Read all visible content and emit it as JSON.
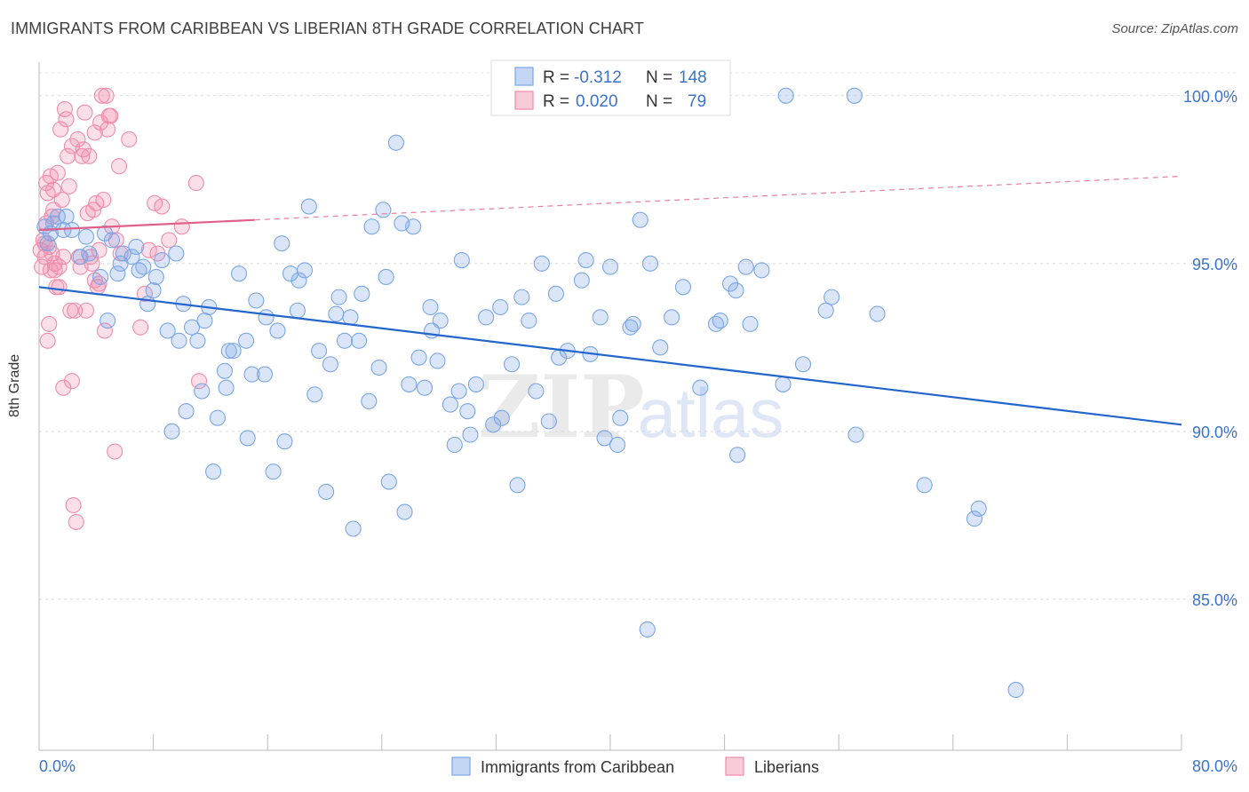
{
  "title": "IMMIGRANTS FROM CARIBBEAN VS LIBERIAN 8TH GRADE CORRELATION CHART",
  "source": "Source: ZipAtlas.com",
  "watermark": {
    "zip": "ZIP",
    "atlas": "atlas"
  },
  "colors": {
    "blue": "#7aa6e6",
    "blue_fill": "rgba(122,166,230,0.28)",
    "blue_line": "#2266cc",
    "pink": "#f08cab",
    "pink_fill": "rgba(240,140,171,0.28)",
    "pink_line": "#e0608a",
    "axis_text": "#3d73c7"
  },
  "legend_top": {
    "rows": [
      {
        "r_label": "R =",
        "r_value": "-0.312",
        "n_label": "N =",
        "n_value": "148"
      },
      {
        "r_label": "R =",
        "r_value": "0.020",
        "n_label": "N =",
        "n_value": "79"
      }
    ]
  },
  "legend_bottom": [
    "Immigrants from Caribbean",
    "Liberians"
  ],
  "chart_data": {
    "type": "scatter",
    "title": "IMMIGRANTS FROM CARIBBEAN VS LIBERIAN 8TH GRADE CORRELATION CHART",
    "xlabel": "",
    "ylabel": "8th Grade",
    "xlim": [
      0,
      80
    ],
    "ylim": [
      80.5,
      101.0
    ],
    "x_tick_labels": [
      "0.0%",
      "80.0%"
    ],
    "y_ticks": [
      85,
      90,
      95,
      100
    ],
    "y_tick_labels": [
      "85.0%",
      "90.0%",
      "95.0%",
      "100.0%"
    ],
    "grid": true,
    "series": [
      {
        "name": "Immigrants from Caribbean",
        "r": -0.312,
        "n": 148,
        "trend": {
          "x": [
            0,
            80
          ],
          "y": [
            94.3,
            90.2
          ]
        },
        "points": [
          [
            0.4,
            96.1
          ],
          [
            0.6,
            95.6
          ],
          [
            0.8,
            95.9
          ],
          [
            1.0,
            96.2
          ],
          [
            1.3,
            96.4
          ],
          [
            1.7,
            96.0
          ],
          [
            1.9,
            96.4
          ],
          [
            2.3,
            96.0
          ],
          [
            2.9,
            95.2
          ],
          [
            3.3,
            95.8
          ],
          [
            3.5,
            95.3
          ],
          [
            4.3,
            94.6
          ],
          [
            4.6,
            95.9
          ],
          [
            4.8,
            93.3
          ],
          [
            5.1,
            95.7
          ],
          [
            5.5,
            94.7
          ],
          [
            5.7,
            95.0
          ],
          [
            5.9,
            95.3
          ],
          [
            6.5,
            95.2
          ],
          [
            6.8,
            95.5
          ],
          [
            7.0,
            94.8
          ],
          [
            7.3,
            94.9
          ],
          [
            7.6,
            93.8
          ],
          [
            8.0,
            94.2
          ],
          [
            8.2,
            94.6
          ],
          [
            8.6,
            95.1
          ],
          [
            9.0,
            93.0
          ],
          [
            9.3,
            90.0
          ],
          [
            9.6,
            95.3
          ],
          [
            9.8,
            92.7
          ],
          [
            10.1,
            93.8
          ],
          [
            10.3,
            90.6
          ],
          [
            10.7,
            93.1
          ],
          [
            11.1,
            92.7
          ],
          [
            11.4,
            91.2
          ],
          [
            11.6,
            93.3
          ],
          [
            11.9,
            93.7
          ],
          [
            12.2,
            88.8
          ],
          [
            12.5,
            90.4
          ],
          [
            13.0,
            91.8
          ],
          [
            13.1,
            91.3
          ],
          [
            13.3,
            92.4
          ],
          [
            13.6,
            92.4
          ],
          [
            14.0,
            94.7
          ],
          [
            14.5,
            92.7
          ],
          [
            14.6,
            89.8
          ],
          [
            14.9,
            91.7
          ],
          [
            15.2,
            93.9
          ],
          [
            15.8,
            91.7
          ],
          [
            15.9,
            93.4
          ],
          [
            16.4,
            88.8
          ],
          [
            16.7,
            93.0
          ],
          [
            17.0,
            95.6
          ],
          [
            17.2,
            89.7
          ],
          [
            17.6,
            94.7
          ],
          [
            18.1,
            93.6
          ],
          [
            18.2,
            94.5
          ],
          [
            18.6,
            94.8
          ],
          [
            18.9,
            96.7
          ],
          [
            19.3,
            91.1
          ],
          [
            19.6,
            92.4
          ],
          [
            20.1,
            88.2
          ],
          [
            20.4,
            92.0
          ],
          [
            20.8,
            93.5
          ],
          [
            21.0,
            94.0
          ],
          [
            21.4,
            92.7
          ],
          [
            21.8,
            93.4
          ],
          [
            22.0,
            87.1
          ],
          [
            22.4,
            92.7
          ],
          [
            22.6,
            94.1
          ],
          [
            23.1,
            90.9
          ],
          [
            23.3,
            96.1
          ],
          [
            23.8,
            91.9
          ],
          [
            24.1,
            96.6
          ],
          [
            24.3,
            94.6
          ],
          [
            24.5,
            88.5
          ],
          [
            25.0,
            98.6
          ],
          [
            25.4,
            96.2
          ],
          [
            25.6,
            87.6
          ],
          [
            25.9,
            91.4
          ],
          [
            26.2,
            96.1
          ],
          [
            26.6,
            92.2
          ],
          [
            27.0,
            91.3
          ],
          [
            27.4,
            93.7
          ],
          [
            27.5,
            93.0
          ],
          [
            27.9,
            92.1
          ],
          [
            28.1,
            93.3
          ],
          [
            28.8,
            90.8
          ],
          [
            29.1,
            89.6
          ],
          [
            29.4,
            91.2
          ],
          [
            29.6,
            95.1
          ],
          [
            30.0,
            90.6
          ],
          [
            30.2,
            89.9
          ],
          [
            30.6,
            91.4
          ],
          [
            31.3,
            93.4
          ],
          [
            31.8,
            90.2
          ],
          [
            32.3,
            93.7
          ],
          [
            32.4,
            90.4
          ],
          [
            33.1,
            92.0
          ],
          [
            33.5,
            88.4
          ],
          [
            33.8,
            94.0
          ],
          [
            34.3,
            93.3
          ],
          [
            34.8,
            91.2
          ],
          [
            35.2,
            95.0
          ],
          [
            35.7,
            90.3
          ],
          [
            36.2,
            94.1
          ],
          [
            36.4,
            92.2
          ],
          [
            37.0,
            92.4
          ],
          [
            38.0,
            94.5
          ],
          [
            38.3,
            95.1
          ],
          [
            38.6,
            92.3
          ],
          [
            39.3,
            93.4
          ],
          [
            39.6,
            89.8
          ],
          [
            40.0,
            94.9
          ],
          [
            40.5,
            89.6
          ],
          [
            40.7,
            90.4
          ],
          [
            41.4,
            93.1
          ],
          [
            41.6,
            93.2
          ],
          [
            42.1,
            96.3
          ],
          [
            42.6,
            84.1
          ],
          [
            42.8,
            95.0
          ],
          [
            43.5,
            92.5
          ],
          [
            44.3,
            93.4
          ],
          [
            45.1,
            94.3
          ],
          [
            46.3,
            91.3
          ],
          [
            47.4,
            93.2
          ],
          [
            47.7,
            93.3
          ],
          [
            48.4,
            94.4
          ],
          [
            48.8,
            94.2
          ],
          [
            48.9,
            89.3
          ],
          [
            49.5,
            94.9
          ],
          [
            49.8,
            93.2
          ],
          [
            50.6,
            94.8
          ],
          [
            52.1,
            91.4
          ],
          [
            52.3,
            100.0
          ],
          [
            53.5,
            92.0
          ],
          [
            55.1,
            93.6
          ],
          [
            55.5,
            94.0
          ],
          [
            57.1,
            100.0
          ],
          [
            57.2,
            89.9
          ],
          [
            58.7,
            93.5
          ],
          [
            62.0,
            88.4
          ],
          [
            65.5,
            87.4
          ],
          [
            65.8,
            87.7
          ],
          [
            68.4,
            82.3
          ]
        ]
      },
      {
        "name": "Liberians",
        "r": 0.02,
        "n": 79,
        "trend": {
          "x": [
            0,
            15.1
          ],
          "y": [
            96.0,
            96.3
          ]
        },
        "trend_dashed": {
          "x": [
            15.1,
            80
          ],
          "y": [
            96.3,
            97.6
          ]
        },
        "points": [
          [
            0.1,
            95.4
          ],
          [
            0.2,
            94.9
          ],
          [
            0.3,
            95.7
          ],
          [
            0.4,
            95.2
          ],
          [
            0.4,
            95.6
          ],
          [
            0.5,
            96.2
          ],
          [
            0.5,
            97.4
          ],
          [
            0.6,
            97.1
          ],
          [
            0.6,
            92.7
          ],
          [
            0.7,
            93.2
          ],
          [
            0.7,
            95.5
          ],
          [
            0.8,
            94.8
          ],
          [
            0.8,
            97.6
          ],
          [
            0.9,
            96.4
          ],
          [
            0.9,
            95.3
          ],
          [
            1.0,
            97.2
          ],
          [
            1.0,
            96.6
          ],
          [
            1.1,
            95.0
          ],
          [
            1.1,
            94.8
          ],
          [
            1.2,
            94.3
          ],
          [
            1.3,
            97.7
          ],
          [
            1.4,
            94.3
          ],
          [
            1.5,
            99.0
          ],
          [
            1.6,
            96.9
          ],
          [
            1.7,
            95.2
          ],
          [
            1.7,
            91.3
          ],
          [
            1.8,
            99.6
          ],
          [
            1.9,
            99.3
          ],
          [
            2.0,
            98.2
          ],
          [
            2.1,
            97.3
          ],
          [
            2.2,
            93.6
          ],
          [
            2.3,
            91.5
          ],
          [
            2.3,
            98.5
          ],
          [
            2.4,
            87.8
          ],
          [
            2.5,
            93.6
          ],
          [
            2.6,
            87.3
          ],
          [
            2.7,
            98.7
          ],
          [
            2.8,
            95.2
          ],
          [
            2.9,
            94.9
          ],
          [
            3.0,
            98.2
          ],
          [
            3.1,
            98.4
          ],
          [
            3.2,
            99.5
          ],
          [
            3.3,
            93.6
          ],
          [
            3.4,
            96.5
          ],
          [
            3.5,
            98.2
          ],
          [
            3.6,
            95.2
          ],
          [
            3.7,
            95.0
          ],
          [
            3.8,
            96.6
          ],
          [
            3.9,
            98.9
          ],
          [
            4.0,
            96.8
          ],
          [
            4.1,
            94.3
          ],
          [
            4.2,
            95.4
          ],
          [
            4.3,
            99.2
          ],
          [
            4.4,
            100.0
          ],
          [
            4.5,
            96.9
          ],
          [
            4.6,
            93.0
          ],
          [
            4.7,
            100.0
          ],
          [
            4.8,
            99.0
          ],
          [
            4.9,
            99.4
          ],
          [
            5.0,
            99.4
          ],
          [
            5.1,
            96.1
          ],
          [
            5.3,
            89.4
          ],
          [
            5.4,
            95.7
          ],
          [
            5.6,
            97.9
          ],
          [
            5.7,
            95.3
          ],
          [
            6.3,
            98.7
          ],
          [
            7.1,
            93.1
          ],
          [
            7.4,
            94.1
          ],
          [
            7.7,
            95.4
          ],
          [
            8.1,
            96.8
          ],
          [
            8.3,
            95.3
          ],
          [
            8.6,
            96.7
          ],
          [
            9.1,
            95.7
          ],
          [
            10.0,
            96.1
          ],
          [
            11.0,
            97.4
          ],
          [
            11.2,
            91.5
          ],
          [
            4.2,
            94.4
          ],
          [
            3.9,
            94.5
          ],
          [
            1.4,
            94.9
          ]
        ]
      }
    ]
  }
}
